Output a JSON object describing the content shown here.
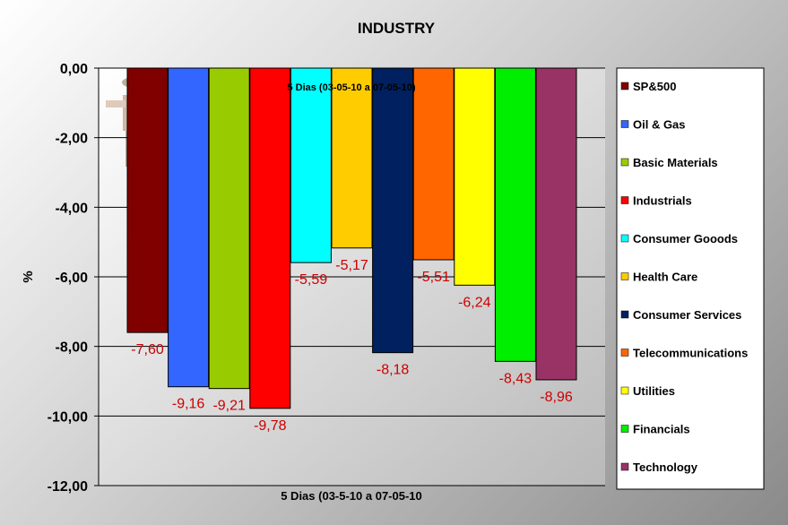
{
  "chart_data": {
    "type": "bar",
    "title": "INDUSTRY",
    "subtitle": "5 Dias (03-05-10 a 07-05-10)",
    "xlabel": "5 Dias (03-5-10 a 07-05-10",
    "ylabel": "%",
    "ylim": [
      -12,
      0
    ],
    "yticks": [
      "0,00",
      "-2,00",
      "-4,00",
      "-6,00",
      "-8,00",
      "-10,00",
      "-12,00"
    ],
    "grid": true,
    "legend_position": "right",
    "series": [
      {
        "name": "SP&500",
        "value": -7.6,
        "label": "-7,60",
        "color": "#800000"
      },
      {
        "name": "Oil & Gas",
        "value": -9.16,
        "label": "-9,16",
        "color": "#3366ff"
      },
      {
        "name": "Basic Materials",
        "value": -9.21,
        "label": "-9,21",
        "color": "#99cc00"
      },
      {
        "name": "Industrials",
        "value": -9.78,
        "label": "-9,78",
        "color": "#ff0000"
      },
      {
        "name": "Consumer Gooods",
        "value": -5.59,
        "label": "-5,59",
        "color": "#00ffff"
      },
      {
        "name": "Health Care",
        "value": -5.17,
        "label": "-5,17",
        "color": "#ffcc00"
      },
      {
        "name": "Consumer Services",
        "value": -8.18,
        "label": "-8,18",
        "color": "#002060"
      },
      {
        "name": "Telecommunications",
        "value": -5.51,
        "label": "-5,51",
        "color": "#ff6600"
      },
      {
        "name": "Utilities",
        "value": -6.24,
        "label": "-6,24",
        "color": "#ffff00"
      },
      {
        "name": "Financials",
        "value": -8.43,
        "label": "-8,43",
        "color": "#00ee00"
      },
      {
        "name": "Technology",
        "value": -8.96,
        "label": "-8,96",
        "color": "#993366"
      }
    ]
  }
}
